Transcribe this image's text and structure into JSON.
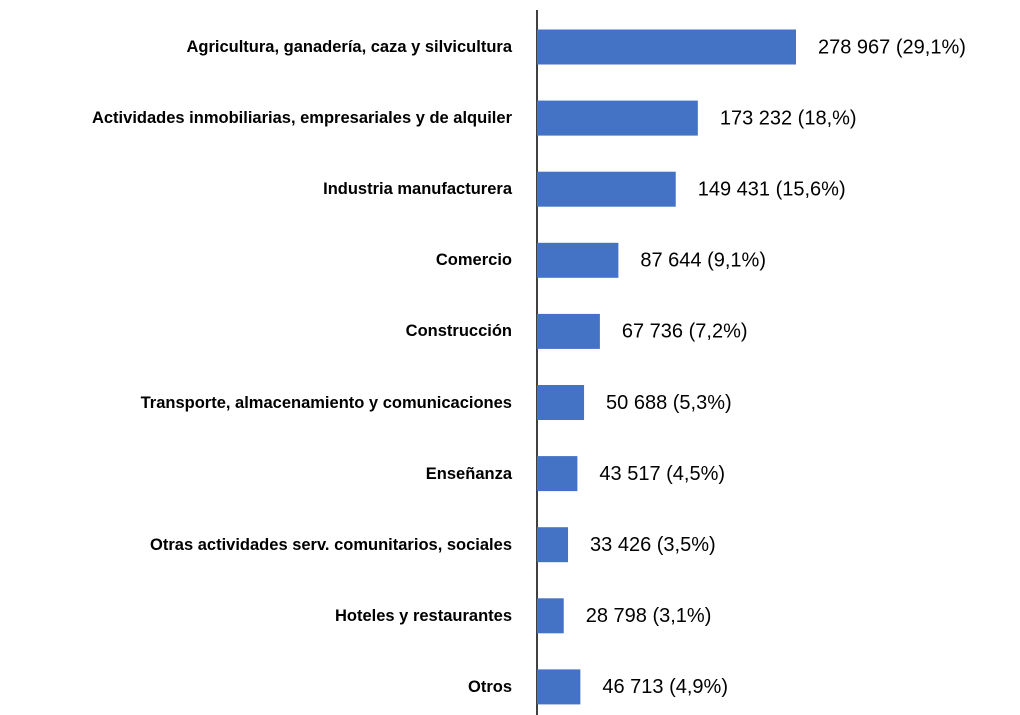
{
  "chart_data": {
    "type": "bar",
    "orientation": "horizontal",
    "color": "#4472c4",
    "categories": [
      "Agricultura, ganadería, caza y silvicultura",
      "Actividades inmobiliarias, empresariales y de alquiler",
      "Industria manufacturera",
      "Comercio",
      "Construcción",
      "Transporte, almacenamiento y comunicaciones",
      "Enseñanza",
      "Otras actividades serv. comunitarios, sociales",
      "Hoteles y restaurantes",
      "Otros"
    ],
    "values": [
      278967,
      173232,
      149431,
      87644,
      67736,
      50688,
      43517,
      33426,
      28798,
      46713
    ],
    "value_labels": [
      "278 967  (29,1%)",
      "173 232  (18,%)",
      "149 431  (15,6%)",
      "87 644  (9,1%)",
      "67 736  (7,2%)",
      "50 688  (5,3%)",
      "43 517  (4,5%)",
      "33 426  (3,5%)",
      "28 798  (3,1%)",
      "46 713  (4,9%)"
    ]
  }
}
